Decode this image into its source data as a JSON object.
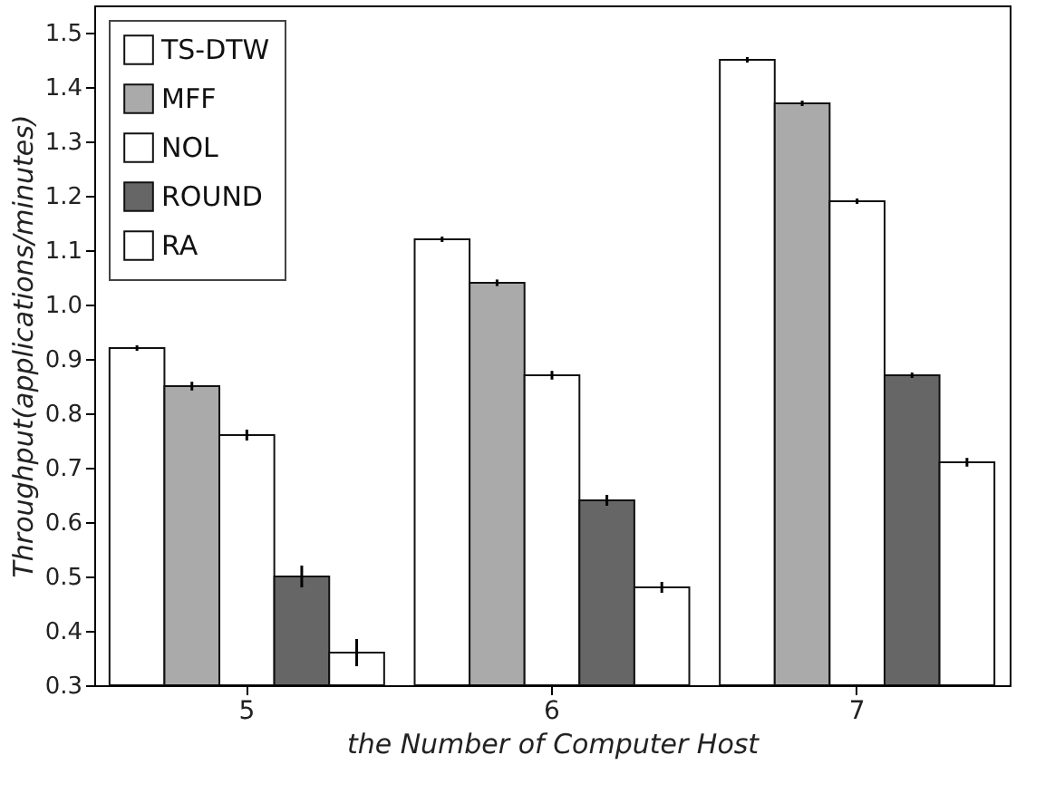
{
  "chart_data": {
    "type": "bar",
    "xlabel": "the Number of Computer Host",
    "ylabel": "Throughput(applications/minutes)",
    "categories": [
      "5",
      "6",
      "7"
    ],
    "series": [
      {
        "name": "TS-DTW",
        "color": "#ffffff",
        "values": [
          0.92,
          1.12,
          1.45
        ],
        "errors": [
          0.005,
          0.005,
          0.005
        ]
      },
      {
        "name": "MFF",
        "color": "#aaaaaa",
        "values": [
          0.85,
          1.04,
          1.37
        ],
        "errors": [
          0.008,
          0.006,
          0.005
        ]
      },
      {
        "name": "NOL",
        "color": "#ffffff",
        "values": [
          0.76,
          0.87,
          1.19
        ],
        "errors": [
          0.01,
          0.008,
          0.005
        ]
      },
      {
        "name": "ROUND",
        "color": "#666666",
        "values": [
          0.5,
          0.64,
          0.87
        ],
        "errors": [
          0.02,
          0.01,
          0.005
        ]
      },
      {
        "name": "RA",
        "color": "#ffffff",
        "values": [
          0.36,
          0.48,
          0.71
        ],
        "errors": [
          0.025,
          0.01,
          0.008
        ]
      }
    ],
    "ylim": [
      0.3,
      1.55
    ],
    "yticks": [
      0.3,
      0.4,
      0.5,
      0.6,
      0.7,
      0.8,
      0.9,
      {
        "value": 1,
        "label": "1.0"
      },
      1.1,
      1.2,
      1.3,
      1.4,
      1.5
    ],
    "grid": false,
    "legend": "top left"
  }
}
